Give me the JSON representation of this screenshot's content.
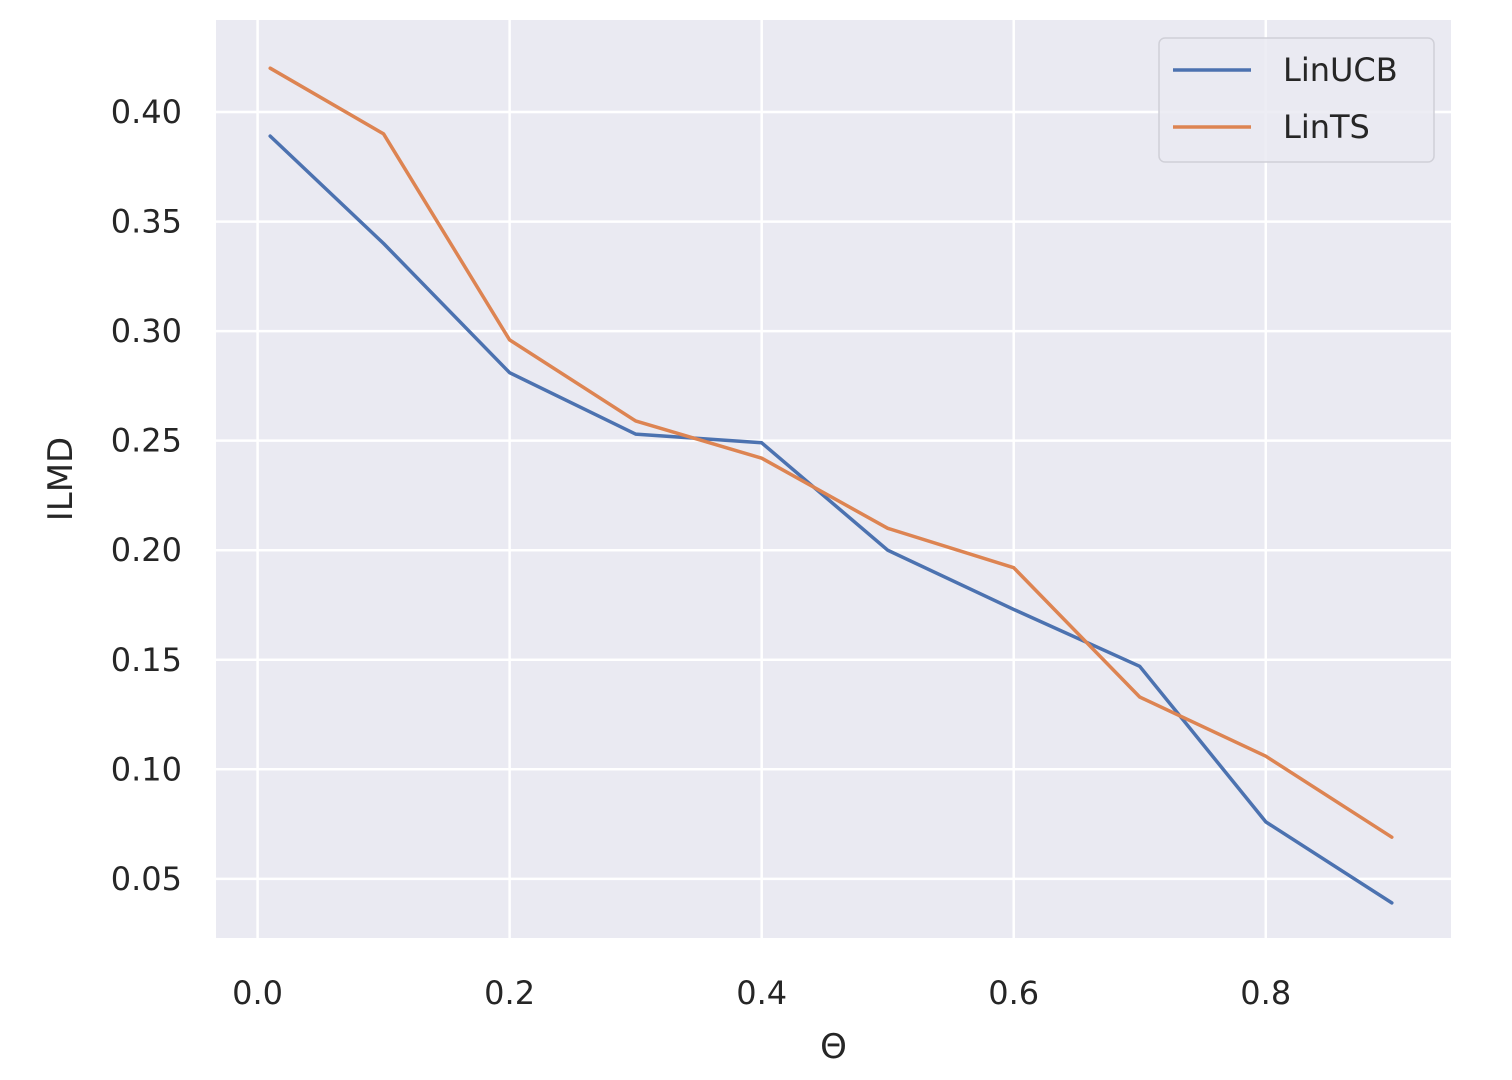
{
  "chart_data": {
    "type": "line",
    "title": "",
    "xlabel": "Θ",
    "ylabel": "ILMD",
    "x": [
      0.01,
      0.1,
      0.2,
      0.3,
      0.4,
      0.5,
      0.6,
      0.7,
      0.8,
      0.9
    ],
    "series": [
      {
        "name": "LinUCB",
        "color": "#4c72b0",
        "values": [
          0.389,
          0.34,
          0.281,
          0.253,
          0.249,
          0.2,
          0.173,
          0.147,
          0.076,
          0.039
        ]
      },
      {
        "name": "LinTS",
        "color": "#dd8452",
        "values": [
          0.42,
          0.39,
          0.296,
          0.259,
          0.242,
          0.21,
          0.192,
          0.133,
          0.106,
          0.069
        ]
      }
    ],
    "xlim": [
      -0.033,
      0.947
    ],
    "ylim": [
      0.023,
      0.442
    ],
    "xticks": [
      0.0,
      0.2,
      0.4,
      0.6,
      0.8
    ],
    "xtick_labels": [
      "0.0",
      "0.2",
      "0.4",
      "0.6",
      "0.8"
    ],
    "yticks": [
      0.05,
      0.1,
      0.15,
      0.2,
      0.25,
      0.3,
      0.35,
      0.4
    ],
    "ytick_labels": [
      "0.05",
      "0.10",
      "0.15",
      "0.20",
      "0.25",
      "0.30",
      "0.35",
      "0.40"
    ],
    "grid": true,
    "legend_position": "top-right",
    "colors": {
      "plot_background": "#eaeaf2",
      "grid": "#ffffff",
      "text": "#262626"
    }
  }
}
